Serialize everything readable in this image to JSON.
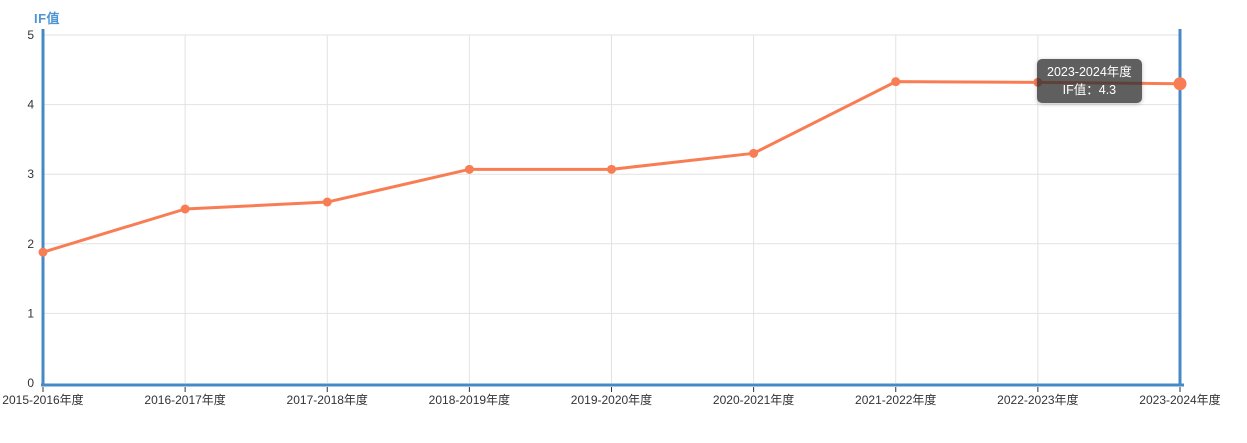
{
  "title": "IF值",
  "colors": {
    "line": "#F97D54",
    "axis": "#4788C7",
    "pointer": "#4788C7",
    "grid": "#E2E2E2",
    "title_text": "#4E96D2",
    "axis_label": "#333333",
    "tick": "#333333",
    "tooltip_bg": "rgba(50,50,50,0.78)",
    "tooltip_text": "#FFFFFF"
  },
  "chart_data": {
    "type": "line",
    "title": "IF值",
    "categories": [
      "2015-2016年度",
      "2016-2017年度",
      "2017-2018年度",
      "2018-2019年度",
      "2019-2020年度",
      "2020-2021年度",
      "2021-2022年度",
      "2022-2023年度",
      "2023-2024年度"
    ],
    "series": [
      {
        "name": "IF值",
        "values": [
          1.88,
          2.5,
          2.6,
          3.07,
          3.07,
          3.3,
          4.33,
          4.32,
          4.3
        ]
      }
    ],
    "xlabel": "",
    "ylabel": "IF值",
    "ylim": [
      0,
      5
    ],
    "y_ticks": [
      0,
      1,
      2,
      3,
      4,
      5
    ],
    "grid": true,
    "legend_position": "none",
    "boundary_gap": false
  },
  "hover": {
    "category_index": 8,
    "pointer_line": true
  },
  "tooltip": {
    "title": "2023-2024年度",
    "series_name": "IF值",
    "value": "4.3",
    "value_line": "IF值：4.3"
  }
}
